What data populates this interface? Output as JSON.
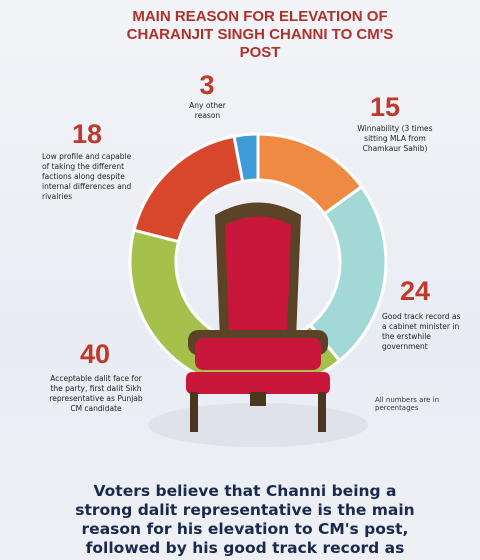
{
  "chart_data": {
    "type": "pie",
    "title": "MAIN REASON FOR ELEVATION OF CHARANJIT SINGH CHANNI TO CM'S POST",
    "categories": [
      "Winnability (3 times sitting MLA from Chamkaur Sahib)",
      "Good track record as a cabinet minister in the erstwhile government",
      "Acceptable dalit face for the party, first dalit Sikh representative as Punjab CM candidate",
      "Low profile and capable of taking the different factions along despite internal differences and rivalries",
      "Any other reason"
    ],
    "values": [
      15,
      24,
      40,
      18,
      3
    ],
    "colors": [
      "#ef8a43",
      "#a2d9d7",
      "#a5c14c",
      "#d8472c",
      "#3d9bd8"
    ],
    "note": "All numbers are in percentages",
    "caption": "Voters believe that Channi being a strong dalit representative is the main reason for his elevation to CM's post, followed by his good track record as cabinet minister."
  }
}
